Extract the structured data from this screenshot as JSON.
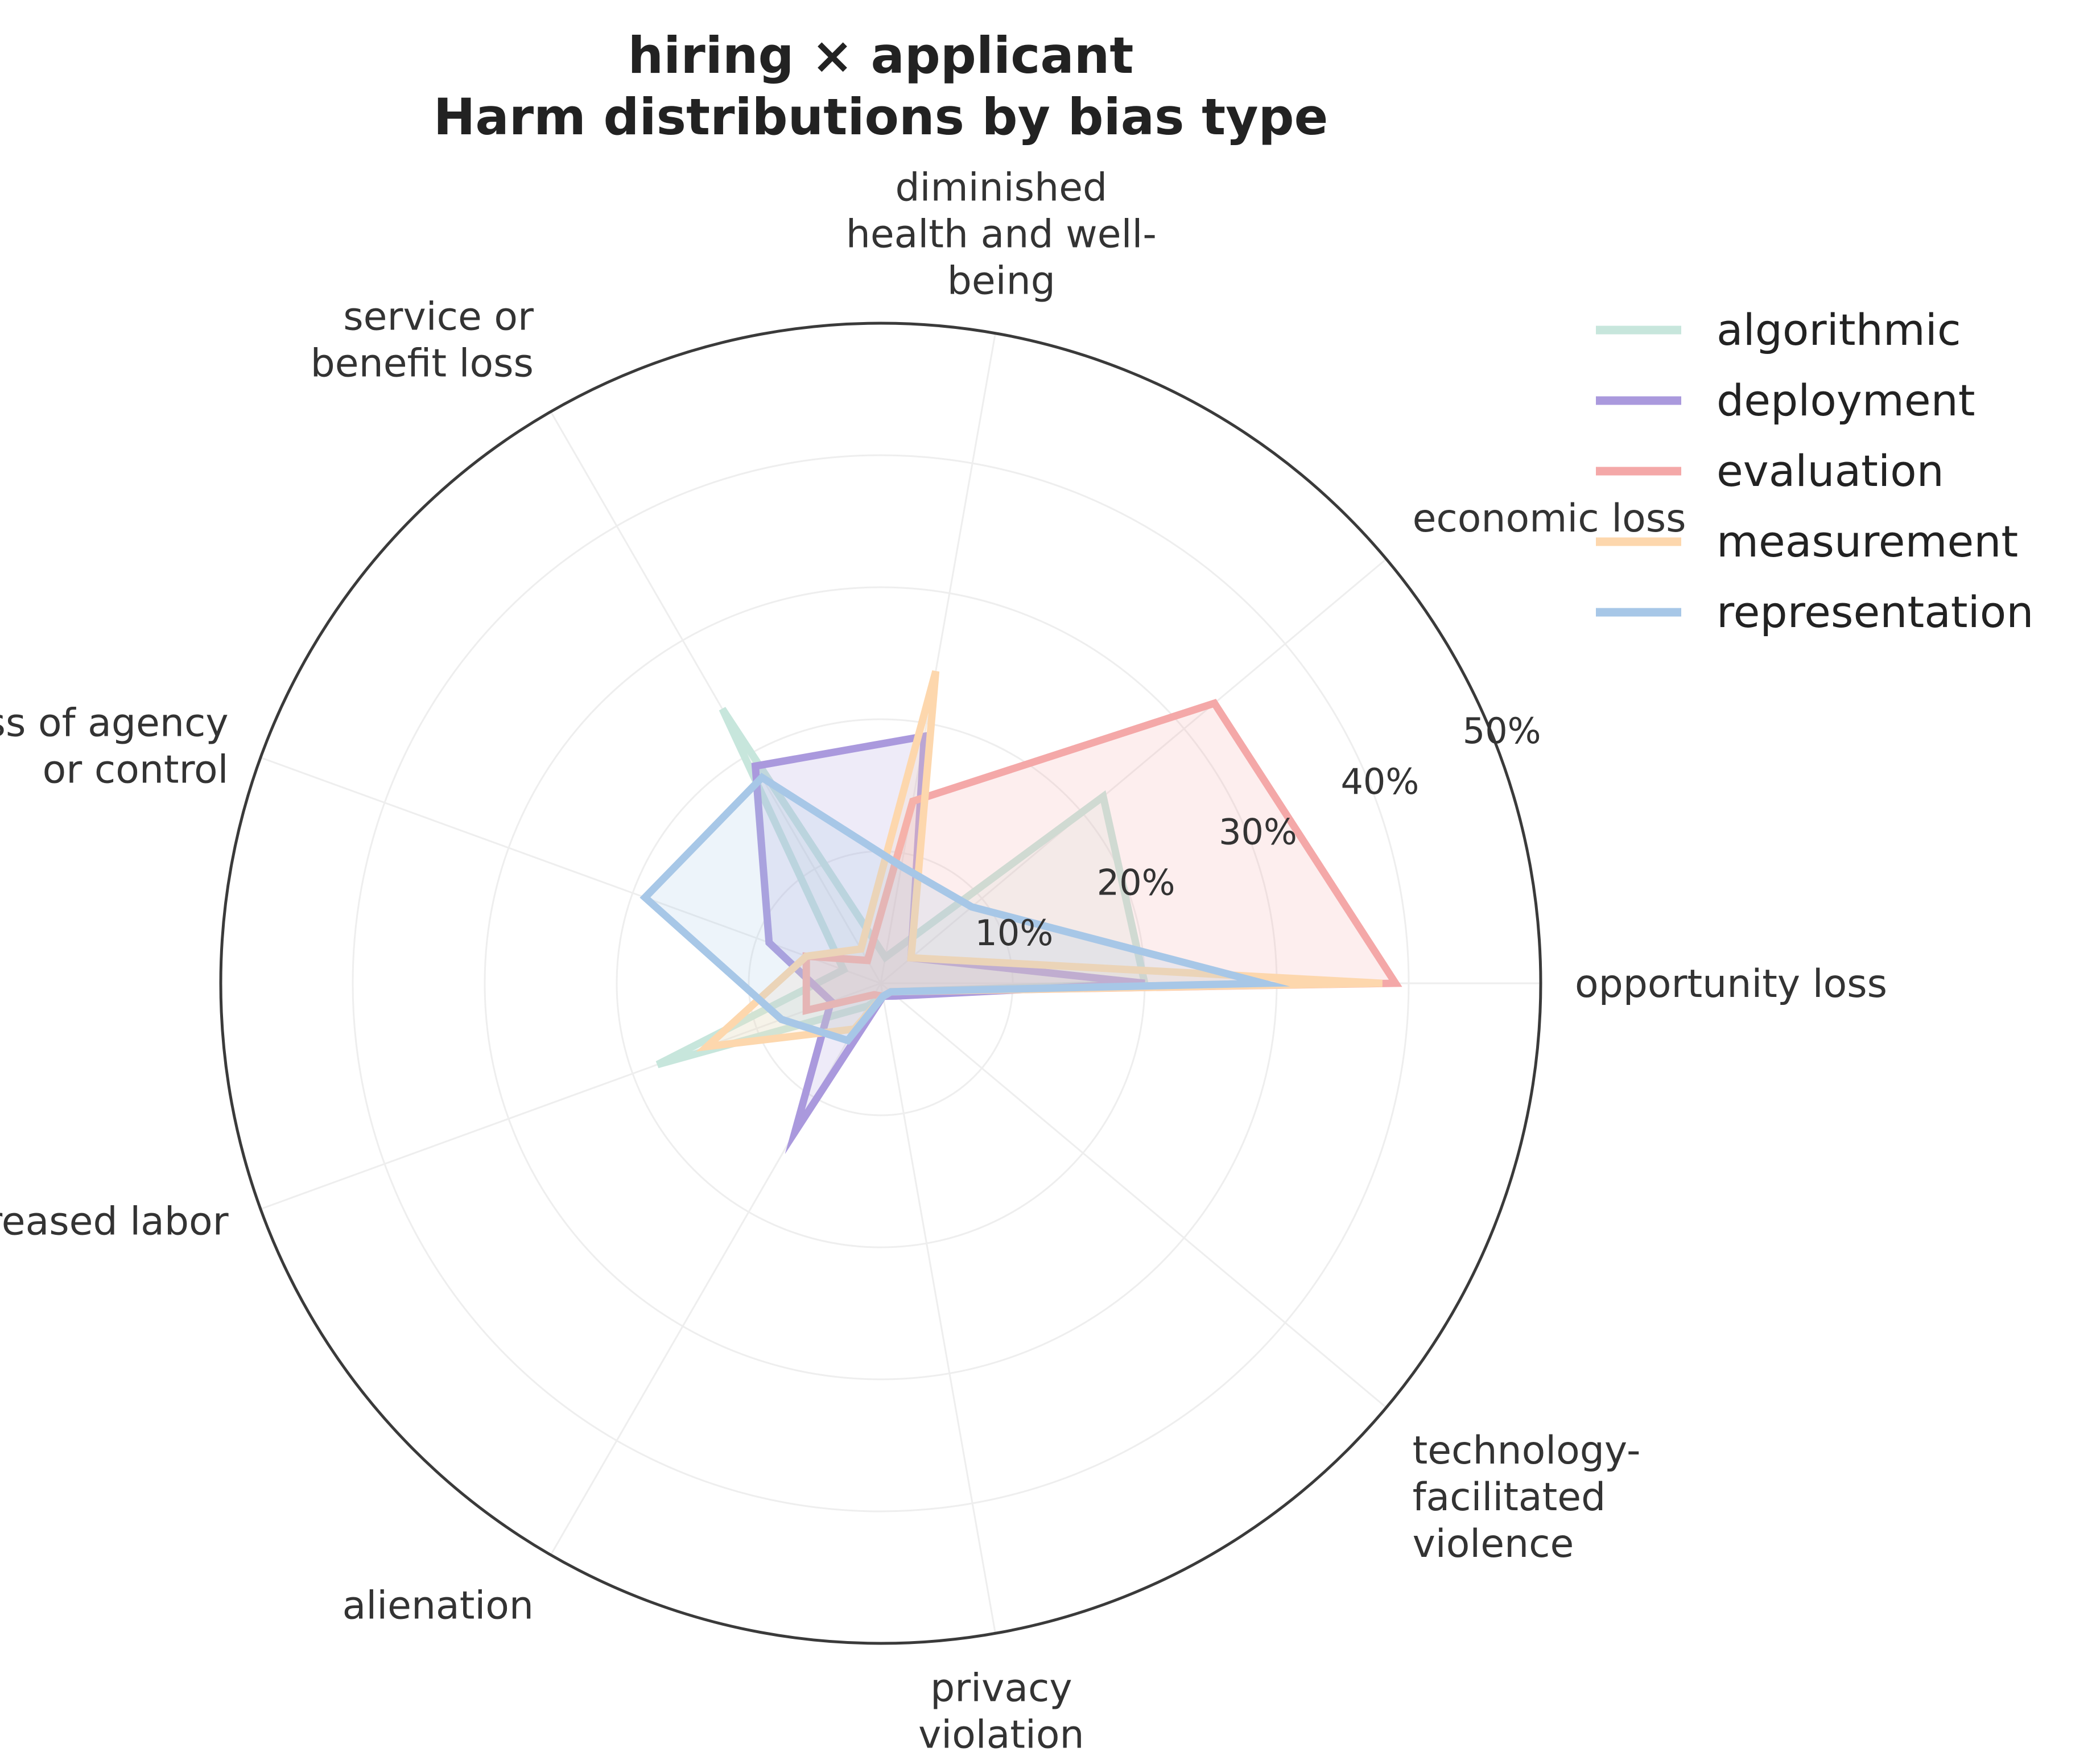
{
  "chart_data": {
    "type": "radar",
    "title": [
      "hiring × applicant",
      "Harm distributions by bias type"
    ],
    "categories": [
      [
        "opportunity loss"
      ],
      [
        "economic loss"
      ],
      [
        "diminished",
        "health and well-",
        "being"
      ],
      [
        "service or",
        "benefit loss"
      ],
      [
        "loss of agency",
        "or control"
      ],
      [
        "increased labor"
      ],
      [
        "alienation"
      ],
      [
        "privacy",
        "violation"
      ],
      [
        "technology-",
        "facilitated",
        "violence"
      ]
    ],
    "rlim": [
      0,
      50
    ],
    "rticks": [
      10,
      20,
      30,
      40,
      50
    ],
    "rtick_labels": [
      "10%",
      "20%",
      "30%",
      "40%",
      "50%"
    ],
    "grid": true,
    "legend_position": "top-right",
    "series": [
      {
        "name": "algorithmic",
        "color": "#c7e6dc",
        "values": [
          20,
          22,
          2,
          24,
          3,
          18,
          2,
          1,
          1
        ]
      },
      {
        "name": "deployment",
        "color": "#aa99dd",
        "values": [
          20,
          3,
          19,
          19,
          9,
          4,
          13,
          1,
          1.5
        ]
      },
      {
        "name": "evaluation",
        "color": "#f4a8a8",
        "values": [
          39,
          33,
          14,
          2,
          6,
          6,
          1,
          1,
          1
        ]
      },
      {
        "name": "measurement",
        "color": "#fdd7ad",
        "values": [
          38,
          3,
          24,
          3,
          6,
          14,
          4,
          1,
          1
        ]
      },
      {
        "name": "representation",
        "color": "#a7c7e7",
        "values": [
          29,
          9,
          9,
          18,
          19,
          8,
          5,
          1,
          1
        ]
      }
    ]
  }
}
